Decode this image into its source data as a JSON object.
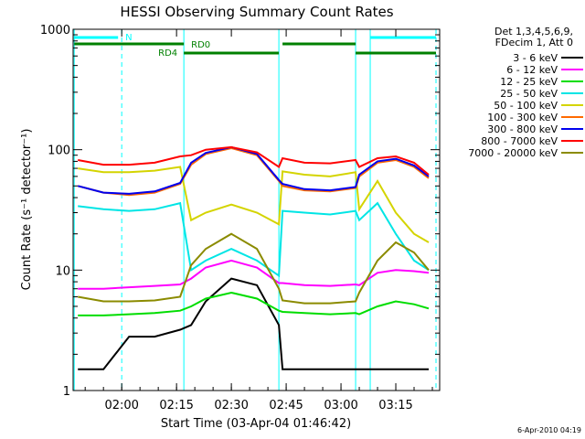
{
  "colors": {
    "3-6": "#000000",
    "6-12": "#ff00ff",
    "12-25": "#00dd00",
    "25-50": "#00e5e5",
    "50-100": "#d4d400",
    "100-300": "#ff6a00",
    "300-800": "#0000ee",
    "800-7000": "#ff0000",
    "7000-20000": "#8b8b00",
    "attenuator": "#00ffff",
    "decimation": "#008000"
  },
  "chart_data": {
    "type": "line",
    "title": "HESSI Observing Summary Count Rates",
    "xlabel": "Start Time (03-Apr-04 01:46:42)",
    "ylabel": "Count Rate (s⁻¹ detector⁻¹)",
    "yscale": "log",
    "ylim": [
      1,
      1000
    ],
    "xlim": [
      "01:46:42",
      "03:27:00"
    ],
    "x_ticks": [
      "02:00",
      "02:15",
      "02:30",
      "02:45",
      "03:00",
      "03:15"
    ],
    "y_ticks": [
      "1",
      "10",
      "100",
      "1000"
    ],
    "x": [
      "01:48",
      "01:55",
      "02:02",
      "02:09",
      "02:16",
      "02:19",
      "02:23",
      "02:30",
      "02:37",
      "02:43",
      "02:44",
      "02:50",
      "02:57",
      "03:04",
      "03:05",
      "03:10",
      "03:15",
      "03:20",
      "03:24"
    ],
    "series": [
      {
        "name": "3 - 6 keV",
        "color_key": "3-6",
        "values": [
          1.5,
          1.5,
          2.8,
          2.8,
          3.2,
          3.5,
          5.5,
          8.5,
          7.5,
          3.5,
          1.5,
          1.5,
          1.5,
          1.5,
          1.5,
          1.5,
          1.5,
          1.5,
          1.5
        ]
      },
      {
        "name": "6 - 12 keV",
        "color_key": "6-12",
        "values": [
          7.0,
          7.0,
          7.2,
          7.4,
          7.6,
          8.5,
          10.5,
          12.0,
          10.5,
          7.8,
          7.8,
          7.5,
          7.4,
          7.6,
          7.5,
          9.5,
          10.0,
          9.8,
          9.5
        ]
      },
      {
        "name": "12 - 25 keV",
        "color_key": "12-25",
        "values": [
          4.2,
          4.2,
          4.3,
          4.4,
          4.6,
          5.0,
          5.8,
          6.5,
          5.8,
          4.6,
          4.5,
          4.4,
          4.3,
          4.4,
          4.3,
          5.0,
          5.5,
          5.2,
          4.8
        ]
      },
      {
        "name": "25 - 50 keV",
        "color_key": "25-50",
        "values": [
          34,
          32,
          31,
          32,
          36,
          10,
          12,
          15,
          12,
          9,
          31,
          30,
          29,
          31,
          26,
          36,
          20,
          12,
          10
        ]
      },
      {
        "name": "50 - 100 keV",
        "color_key": "50-100",
        "values": [
          70,
          65,
          65,
          67,
          72,
          26,
          30,
          35,
          30,
          24,
          66,
          62,
          60,
          65,
          32,
          55,
          30,
          20,
          17
        ]
      },
      {
        "name": "100 - 300 keV",
        "color_key": "100-300",
        "values": [
          50,
          44,
          42,
          44,
          52,
          75,
          92,
          103,
          90,
          55,
          50,
          46,
          45,
          48,
          60,
          78,
          82,
          72,
          58
        ]
      },
      {
        "name": "300 - 800 keV",
        "color_key": "300-800",
        "values": [
          50,
          44,
          43,
          45,
          53,
          78,
          94,
          105,
          92,
          56,
          52,
          47,
          46,
          49,
          62,
          80,
          84,
          74,
          60
        ]
      },
      {
        "name": "800 - 7000 keV",
        "color_key": "800-7000",
        "values": [
          82,
          75,
          75,
          78,
          88,
          90,
          100,
          105,
          95,
          72,
          85,
          78,
          77,
          82,
          72,
          85,
          88,
          78,
          62
        ]
      },
      {
        "name": "7000 - 20000 keV",
        "color_key": "7000-20000",
        "values": [
          6.0,
          5.5,
          5.5,
          5.6,
          6.0,
          11.0,
          15.0,
          20.0,
          15.0,
          7.0,
          5.6,
          5.3,
          5.3,
          5.5,
          6.5,
          12.0,
          17.0,
          14.0,
          10.0
        ]
      }
    ],
    "legend": {
      "position": "right",
      "header": [
        "Det 1,3,4,5,6,9,",
        "FDecim 1, Att 0"
      ],
      "entries": [
        "3 - 6 keV",
        "6 - 12 keV",
        "12 - 25 keV",
        "25 - 50 keV",
        "50 - 100 keV",
        "100 - 300 keV",
        "300 - 800 keV",
        "800 - 7000 keV",
        "7000 - 20000 keV"
      ]
    },
    "annotations": {
      "attenuator_label": "N",
      "decimation_labels": [
        "RD0",
        "RD4"
      ]
    },
    "footer_stamp": "6-Apr-2010 04:19"
  }
}
